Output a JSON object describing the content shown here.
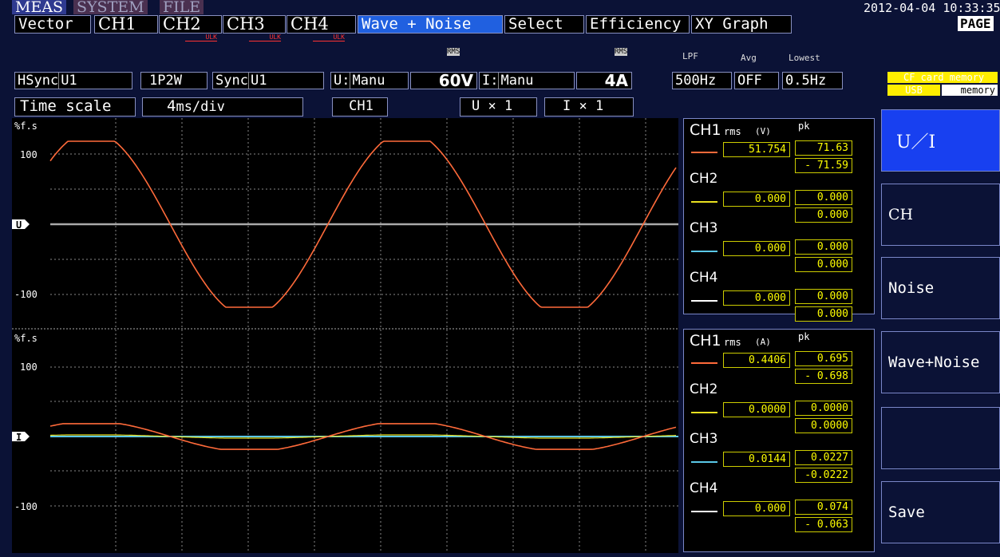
{
  "tabs": [
    "MEAS",
    "SYSTEM",
    "FILE"
  ],
  "datetime": "2012-04-04 10:33:35",
  "menu": [
    "Vector",
    "CH1",
    "CH2",
    "CH3",
    "CH4",
    "Wave + Noise",
    "Select",
    "Efficiency",
    "XY Graph"
  ],
  "page": "PAGE",
  "ulk": [
    "ULK",
    "ULK",
    "ULK"
  ],
  "settings": {
    "rms_labels": [
      "RMS",
      "RMS"
    ],
    "lpf_label": "LPF",
    "avg_label": "Avg",
    "lowest_label": "Lowest",
    "hsync_label": "HSync",
    "hsync": "U1",
    "wiring": "1P2W",
    "sync_label": "Sync",
    "sync": "U1",
    "u_label": "U:",
    "u_mode": "Manu",
    "u_range": "60V",
    "i_label": "I:",
    "i_mode": "Manu",
    "i_range": "4A",
    "lpf": "500Hz",
    "avg": "OFF",
    "lowest": "0.5Hz"
  },
  "storage": {
    "cf": "CF card memory",
    "usb": "USB",
    "memory": "memory"
  },
  "timescale": {
    "label": "Time scale",
    "value": "4",
    "unit": "ms/div",
    "channel": "CH1",
    "u_label": "U",
    "u_zoom": "× 1",
    "i_label": "I",
    "i_zoom": "× 1"
  },
  "plots": [
    {
      "unit": "%f.s",
      "top": "100",
      "bottom": "-100",
      "marker": "U"
    },
    {
      "unit": "%f.s",
      "top": "100",
      "bottom": "-100",
      "marker": "I"
    }
  ],
  "panels": [
    {
      "rms_label": "rms",
      "unit": "(V)",
      "pk_label": "pk",
      "channels": [
        {
          "name": "CH1",
          "rms": "51.754",
          "pk_pos": "71.63",
          "pk_neg": "- 71.59"
        },
        {
          "name": "CH2",
          "rms": "0.000",
          "pk_pos": "0.000",
          "pk_neg": "0.000"
        },
        {
          "name": "CH3",
          "rms": "0.000",
          "pk_pos": "0.000",
          "pk_neg": "0.000"
        },
        {
          "name": "CH4",
          "rms": "0.000",
          "pk_pos": "0.000",
          "pk_neg": "0.000"
        }
      ]
    },
    {
      "rms_label": "rms",
      "unit": "(A)",
      "pk_label": "pk",
      "channels": [
        {
          "name": "CH1",
          "rms": "0.4406",
          "pk_pos": "0.695",
          "pk_neg": "- 0.698"
        },
        {
          "name": "CH2",
          "rms": "0.0000",
          "pk_pos": "0.0000",
          "pk_neg": "0.0000"
        },
        {
          "name": "CH3",
          "rms": "0.0144",
          "pk_pos": "0.0227",
          "pk_neg": "-0.0222"
        },
        {
          "name": "CH4",
          "rms": "0.000",
          "pk_pos": "0.074",
          "pk_neg": "- 0.063"
        }
      ]
    }
  ],
  "buttons": [
    "U／I",
    "CH",
    "Noise",
    "Wave+Noise",
    "Save"
  ]
}
